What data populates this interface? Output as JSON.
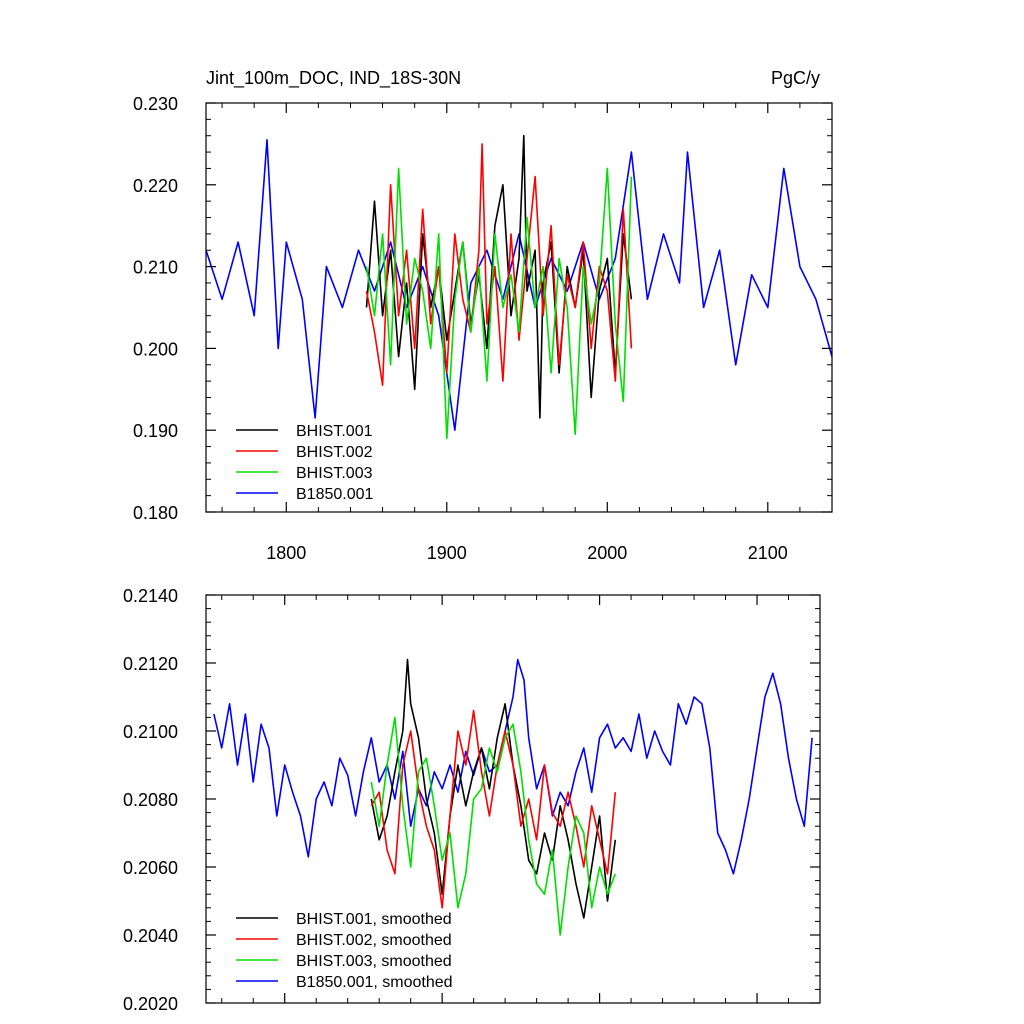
{
  "header": {
    "title_left": "Jint_100m_DOC, IND_18S-30N",
    "title_right": "PgC/y"
  },
  "colors": {
    "BHIST.001": "#000000",
    "BHIST.002": "#ff0000",
    "BHIST.003": "#00e000",
    "B1850.001": "#0000ff"
  },
  "chart_data": [
    {
      "type": "line",
      "title": "Jint_100m_DOC, IND_18S-30N",
      "units": "PgC/y",
      "xlim": [
        1750,
        2140
      ],
      "ylim": [
        0.18,
        0.23
      ],
      "x_ticks": [
        1800,
        1900,
        2000,
        2100
      ],
      "x_tick_labels": [
        "1800",
        "1900",
        "2000",
        "2100"
      ],
      "y_ticks": [
        0.18,
        0.19,
        0.2,
        0.21,
        0.22,
        0.23
      ],
      "y_tick_labels": [
        "0.180",
        "0.190",
        "0.200",
        "0.210",
        "0.220",
        "0.230"
      ],
      "legend": {
        "position": "bottom-left",
        "entries": [
          "BHIST.001",
          "BHIST.002",
          "BHIST.003",
          "B1850.001"
        ]
      },
      "series": [
        {
          "name": "B1850.001",
          "x": [
            1750,
            1760,
            1770,
            1780,
            1788,
            1795,
            1800,
            1810,
            1818,
            1825,
            1835,
            1845,
            1855,
            1865,
            1875,
            1885,
            1895,
            1905,
            1915,
            1925,
            1935,
            1945,
            1955,
            1965,
            1975,
            1985,
            1995,
            2005,
            2015,
            2025,
            2035,
            2045,
            2050,
            2060,
            2070,
            2080,
            2090,
            2100,
            2110,
            2120,
            2130,
            2140
          ],
          "y": [
            0.212,
            0.206,
            0.213,
            0.204,
            0.2255,
            0.2,
            0.213,
            0.206,
            0.1915,
            0.21,
            0.205,
            0.212,
            0.207,
            0.213,
            0.205,
            0.21,
            0.204,
            0.19,
            0.208,
            0.212,
            0.206,
            0.214,
            0.205,
            0.211,
            0.207,
            0.213,
            0.206,
            0.211,
            0.224,
            0.206,
            0.214,
            0.208,
            0.224,
            0.205,
            0.212,
            0.198,
            0.209,
            0.205,
            0.222,
            0.21,
            0.206,
            0.199
          ]
        },
        {
          "name": "BHIST.001",
          "x": [
            1850,
            1855,
            1860,
            1865,
            1870,
            1875,
            1880,
            1885,
            1890,
            1895,
            1900,
            1905,
            1910,
            1915,
            1920,
            1925,
            1930,
            1935,
            1940,
            1945,
            1948,
            1950,
            1955,
            1958,
            1960,
            1965,
            1970,
            1975,
            1980,
            1985,
            1990,
            1995,
            2000,
            2005,
            2010,
            2015
          ],
          "y": [
            0.205,
            0.218,
            0.204,
            0.212,
            0.199,
            0.208,
            0.195,
            0.214,
            0.205,
            0.21,
            0.201,
            0.207,
            0.213,
            0.203,
            0.209,
            0.2,
            0.215,
            0.22,
            0.204,
            0.211,
            0.226,
            0.207,
            0.212,
            0.1915,
            0.208,
            0.213,
            0.197,
            0.21,
            0.205,
            0.212,
            0.194,
            0.207,
            0.211,
            0.197,
            0.214,
            0.206
          ]
        },
        {
          "name": "BHIST.002",
          "x": [
            1850,
            1855,
            1860,
            1865,
            1870,
            1875,
            1880,
            1885,
            1890,
            1895,
            1900,
            1905,
            1910,
            1915,
            1920,
            1922,
            1925,
            1930,
            1935,
            1940,
            1945,
            1950,
            1955,
            1960,
            1965,
            1970,
            1975,
            1980,
            1985,
            1990,
            1995,
            2000,
            2005,
            2010,
            2015
          ],
          "y": [
            0.207,
            0.202,
            0.1955,
            0.22,
            0.204,
            0.212,
            0.2,
            0.217,
            0.203,
            0.21,
            0.197,
            0.214,
            0.206,
            0.202,
            0.212,
            0.225,
            0.203,
            0.21,
            0.196,
            0.214,
            0.201,
            0.211,
            0.221,
            0.204,
            0.215,
            0.198,
            0.209,
            0.205,
            0.213,
            0.2,
            0.21,
            0.207,
            0.196,
            0.217,
            0.2
          ]
        },
        {
          "name": "BHIST.003",
          "x": [
            1850,
            1855,
            1860,
            1865,
            1870,
            1875,
            1880,
            1885,
            1890,
            1895,
            1900,
            1905,
            1910,
            1915,
            1920,
            1925,
            1930,
            1935,
            1940,
            1945,
            1950,
            1955,
            1960,
            1965,
            1970,
            1975,
            1980,
            1985,
            1990,
            1995,
            2000,
            2005,
            2010,
            2015
          ],
          "y": [
            0.21,
            0.204,
            0.214,
            0.198,
            0.222,
            0.203,
            0.211,
            0.207,
            0.2,
            0.214,
            0.189,
            0.206,
            0.213,
            0.202,
            0.21,
            0.196,
            0.214,
            0.205,
            0.209,
            0.202,
            0.216,
            0.205,
            0.21,
            0.197,
            0.211,
            0.205,
            0.1895,
            0.21,
            0.203,
            0.208,
            0.222,
            0.203,
            0.1935,
            0.221
          ]
        }
      ]
    },
    {
      "type": "line",
      "xlim": [
        1750,
        2140
      ],
      "ylim": [
        0.202,
        0.214
      ],
      "x_ticks": [
        1800,
        1900,
        2000,
        2100
      ],
      "x_tick_labels": [
        "",
        "",
        "",
        ""
      ],
      "y_ticks": [
        0.202,
        0.204,
        0.206,
        0.208,
        0.21,
        0.212,
        0.214
      ],
      "y_tick_labels": [
        "0.2020",
        "0.2040",
        "0.2060",
        "0.2080",
        "0.2100",
        "0.2120",
        "0.2140"
      ],
      "legend": {
        "position": "bottom-left",
        "entries": [
          "BHIST.001, smoothed",
          "BHIST.002, smoothed",
          "BHIST.003, smoothed",
          "B1850.001, smoothed"
        ]
      },
      "series": [
        {
          "name": "B1850.001, smoothed",
          "x": [
            1755,
            1760,
            1765,
            1770,
            1775,
            1780,
            1785,
            1790,
            1795,
            1800,
            1805,
            1810,
            1815,
            1820,
            1825,
            1830,
            1835,
            1840,
            1845,
            1850,
            1855,
            1860,
            1865,
            1870,
            1875,
            1880,
            1885,
            1890,
            1895,
            1900,
            1905,
            1910,
            1915,
            1920,
            1925,
            1930,
            1935,
            1940,
            1945,
            1948,
            1952,
            1955,
            1960,
            1965,
            1970,
            1975,
            1980,
            1985,
            1990,
            1995,
            2000,
            2005,
            2010,
            2015,
            2020,
            2025,
            2030,
            2035,
            2040,
            2045,
            2050,
            2055,
            2060,
            2065,
            2070,
            2075,
            2080,
            2085,
            2090,
            2095,
            2100,
            2105,
            2110,
            2115,
            2120,
            2125,
            2130,
            2135
          ],
          "y": [
            0.2105,
            0.2095,
            0.2108,
            0.209,
            0.2105,
            0.2085,
            0.2102,
            0.2095,
            0.2075,
            0.209,
            0.2082,
            0.2075,
            0.2063,
            0.208,
            0.2085,
            0.2078,
            0.2092,
            0.2087,
            0.2075,
            0.2088,
            0.2098,
            0.2085,
            0.209,
            0.208,
            0.2094,
            0.2072,
            0.2083,
            0.2078,
            0.2088,
            0.2083,
            0.209,
            0.2082,
            0.2094,
            0.2087,
            0.2095,
            0.2088,
            0.209,
            0.21,
            0.211,
            0.2121,
            0.2115,
            0.2098,
            0.2083,
            0.209,
            0.2075,
            0.2082,
            0.2078,
            0.2088,
            0.2095,
            0.2082,
            0.2098,
            0.2102,
            0.2095,
            0.2098,
            0.2094,
            0.2105,
            0.2092,
            0.21,
            0.2094,
            0.209,
            0.2108,
            0.2102,
            0.211,
            0.2108,
            0.2095,
            0.207,
            0.2065,
            0.2058,
            0.2068,
            0.208,
            0.2095,
            0.211,
            0.2117,
            0.2108,
            0.2092,
            0.208,
            0.2072,
            0.2098
          ]
        },
        {
          "name": "BHIST.001, smoothed",
          "x": [
            1855,
            1860,
            1865,
            1870,
            1875,
            1878,
            1880,
            1885,
            1890,
            1895,
            1900,
            1905,
            1910,
            1915,
            1920,
            1925,
            1930,
            1935,
            1940,
            1945,
            1950,
            1955,
            1960,
            1965,
            1970,
            1975,
            1980,
            1985,
            1990,
            1995,
            2000,
            2005,
            2010
          ],
          "y": [
            0.208,
            0.2068,
            0.2075,
            0.2088,
            0.21,
            0.2121,
            0.2108,
            0.2098,
            0.208,
            0.207,
            0.2052,
            0.2075,
            0.209,
            0.2078,
            0.2088,
            0.2095,
            0.2083,
            0.2098,
            0.2108,
            0.209,
            0.2078,
            0.2062,
            0.2058,
            0.207,
            0.2062,
            0.2078,
            0.2068,
            0.2055,
            0.2045,
            0.206,
            0.2075,
            0.205,
            0.2068
          ]
        },
        {
          "name": "BHIST.002, smoothed",
          "x": [
            1855,
            1860,
            1865,
            1870,
            1875,
            1880,
            1885,
            1890,
            1895,
            1900,
            1905,
            1910,
            1915,
            1920,
            1925,
            1930,
            1935,
            1940,
            1945,
            1950,
            1955,
            1960,
            1965,
            1970,
            1975,
            1980,
            1985,
            1990,
            1995,
            2000,
            2005,
            2010
          ],
          "y": [
            0.2078,
            0.2082,
            0.2065,
            0.2058,
            0.209,
            0.21,
            0.2083,
            0.2072,
            0.2065,
            0.2048,
            0.2075,
            0.21,
            0.209,
            0.2106,
            0.2088,
            0.2075,
            0.209,
            0.21,
            0.209,
            0.2072,
            0.208,
            0.2068,
            0.209,
            0.2076,
            0.2072,
            0.2082,
            0.2072,
            0.206,
            0.2078,
            0.2068,
            0.2058,
            0.2082
          ]
        },
        {
          "name": "BHIST.003, smoothed",
          "x": [
            1855,
            1860,
            1865,
            1870,
            1875,
            1880,
            1885,
            1890,
            1895,
            1900,
            1905,
            1910,
            1915,
            1920,
            1925,
            1930,
            1935,
            1940,
            1945,
            1950,
            1955,
            1960,
            1965,
            1970,
            1975,
            1980,
            1985,
            1990,
            1995,
            2000,
            2005,
            2010
          ],
          "y": [
            0.2085,
            0.2072,
            0.209,
            0.2104,
            0.2078,
            0.206,
            0.2088,
            0.2092,
            0.2078,
            0.2062,
            0.207,
            0.2048,
            0.2058,
            0.208,
            0.2083,
            0.2095,
            0.2088,
            0.2098,
            0.2102,
            0.2088,
            0.2068,
            0.2055,
            0.2052,
            0.2065,
            0.204,
            0.206,
            0.2075,
            0.207,
            0.2048,
            0.206,
            0.2052,
            0.2058
          ]
        }
      ]
    }
  ]
}
